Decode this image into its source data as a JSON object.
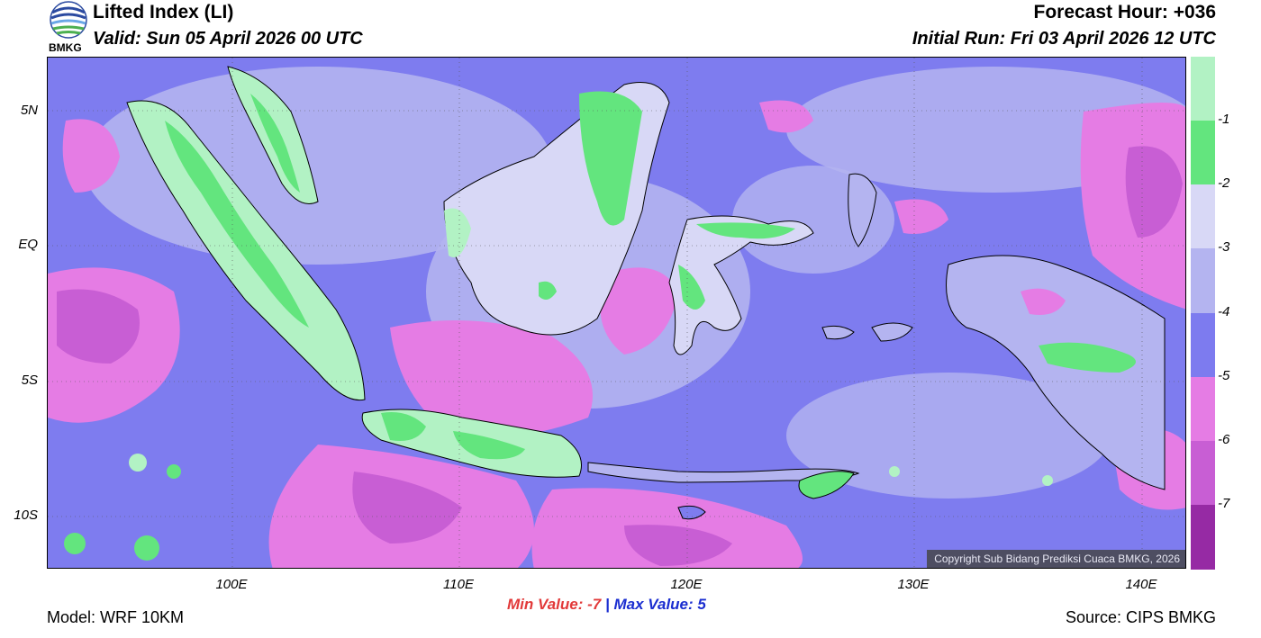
{
  "header": {
    "title": "Lifted Index (LI)",
    "valid": "Valid: Sun 05 April 2026 00 UTC",
    "forecast_hour": "Forecast Hour: +036",
    "initial_run": "Initial Run: Fri 03 April 2026 12 UTC",
    "logo_text": "BMKG"
  },
  "map": {
    "lat_labels": [
      "5N",
      "EQ",
      "5S",
      "10S"
    ],
    "lon_labels": [
      "100E",
      "110E",
      "120E",
      "130E",
      "140E"
    ],
    "copyright": "Copyright Sub Bidang Prediksi Cuaca BMKG, 2026"
  },
  "colorbar": {
    "colors": [
      "#b2f2c4",
      "#63e57e",
      "#d8d8f6",
      "#b4b4f0",
      "#7d7bef",
      "#e57ce4",
      "#c85ed4",
      "#962aa4"
    ],
    "labels": [
      "-1",
      "-2",
      "-3",
      "-4",
      "-5",
      "-6",
      "-7"
    ]
  },
  "stats": {
    "min_label": "Min Value:",
    "min_value": "-7",
    "separator": "|",
    "max_label": "Max Value:",
    "max_value": "5"
  },
  "footer": {
    "model": "Model: WRF 10KM",
    "source": "Source: CIPS BMKG"
  }
}
